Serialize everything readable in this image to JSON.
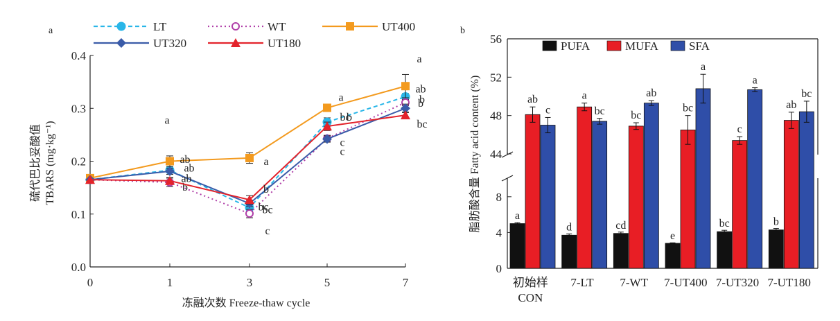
{
  "charts": [
    {
      "panel_label": "a",
      "chart_data": {
        "type": "line",
        "title": "",
        "xlabel": "冻融次数 Freeze-thaw cycle",
        "ylabel_cn": "硫代巴比妥酸值",
        "ylabel_en": "TBARS (mg·kg⁻¹)",
        "x": [
          0,
          1,
          3,
          5,
          7
        ],
        "x_tick_labels": [
          "0",
          "1",
          "3",
          "5",
          "7"
        ],
        "ylim": [
          0.0,
          0.4
        ],
        "y_tick_labels": [
          "0.0",
          "0.1",
          "0.2",
          "0.3",
          "0.4"
        ],
        "grid": false,
        "legend_position": "top",
        "series": [
          {
            "name": "LT",
            "color": "#29b6e8",
            "dash": "dashed",
            "marker": "circle-filled",
            "values": [
              0.165,
              0.183,
              0.112,
              0.274,
              0.322
            ],
            "errors": [
              0.003,
              0.004,
              0.006,
              0.008,
              0.006
            ],
            "labels": [
              "",
              "ab",
              "bc",
              "b",
              "ab"
            ]
          },
          {
            "name": "WT",
            "color": "#b03fa8",
            "dash": "dotted",
            "marker": "circle-open",
            "values": [
              0.165,
              0.16,
              0.101,
              0.243,
              0.311
            ],
            "errors": [
              0.003,
              0.008,
              0.008,
              0.006,
              0.006
            ],
            "labels": [
              "",
              "b",
              "c",
              "c",
              "b"
            ]
          },
          {
            "name": "UT400",
            "color": "#f39a1e",
            "dash": "solid",
            "marker": "square",
            "values": [
              0.168,
              0.2,
              0.206,
              0.301,
              0.342
            ],
            "errors": [
              0.003,
              0.01,
              0.01,
              0.006,
              0.022
            ],
            "labels": [
              "",
              "a",
              "a",
              "a",
              "a"
            ]
          },
          {
            "name": "UT320",
            "color": "#3a5ba8",
            "dash": "solid",
            "marker": "diamond",
            "values": [
              0.165,
              0.181,
              0.12,
              0.242,
              0.3
            ],
            "errors": [
              0.003,
              0.006,
              0.006,
              0.006,
              0.008
            ],
            "labels": [
              "",
              "ab",
              "bc",
              "c",
              "b"
            ]
          },
          {
            "name": "UT180",
            "color": "#e3232b",
            "dash": "solid",
            "marker": "triangle",
            "values": [
              0.165,
              0.163,
              0.127,
              0.266,
              0.287
            ],
            "errors": [
              0.003,
              0.006,
              0.008,
              0.008,
              0.006
            ],
            "labels": [
              "",
              "ab",
              "b",
              "bc",
              "bc"
            ]
          }
        ]
      }
    },
    {
      "panel_label": "b",
      "chart_data": {
        "type": "bar",
        "title": "",
        "xlabel": "",
        "ylabel": "脂肪酸含量 Fatty acid content (%)",
        "categories": [
          [
            "初始样",
            "CON"
          ],
          [
            "7-LT"
          ],
          [
            "7-WT"
          ],
          [
            "7-UT400"
          ],
          [
            "7-UT320"
          ],
          [
            "7-UT180"
          ]
        ],
        "y_axis_break": [
          10,
          44
        ],
        "lower_ylim": [
          0,
          10
        ],
        "lower_ticks": [
          "0",
          "4",
          "8"
        ],
        "upper_ylim": [
          44,
          56
        ],
        "upper_ticks": [
          "44",
          "48",
          "52",
          "56"
        ],
        "grid": false,
        "legend_position": "top",
        "series": [
          {
            "name": "PUFA",
            "color": "#111111",
            "values": [
              5.0,
              3.7,
              3.9,
              2.8,
              4.1,
              4.3
            ],
            "errors": [
              0.1,
              0.15,
              0.15,
              0.05,
              0.15,
              0.15
            ],
            "labels": [
              "a",
              "d",
              "cd",
              "e",
              "bc",
              "b"
            ]
          },
          {
            "name": "MUFA",
            "color": "#e81e25",
            "values": [
              48.1,
              48.9,
              46.9,
              46.5,
              45.4,
              47.5
            ],
            "errors": [
              0.8,
              0.4,
              0.35,
              1.5,
              0.4,
              0.85
            ],
            "labels": [
              "ab",
              "a",
              "bc",
              "bc",
              "c",
              "ab"
            ]
          },
          {
            "name": "SFA",
            "color": "#2f4ea8",
            "values": [
              47.0,
              47.4,
              49.3,
              50.8,
              50.7,
              48.4
            ],
            "errors": [
              0.8,
              0.3,
              0.25,
              1.5,
              0.2,
              1.1
            ],
            "labels": [
              "c",
              "bc",
              "ab",
              "a",
              "a",
              "bc"
            ]
          }
        ]
      }
    }
  ]
}
